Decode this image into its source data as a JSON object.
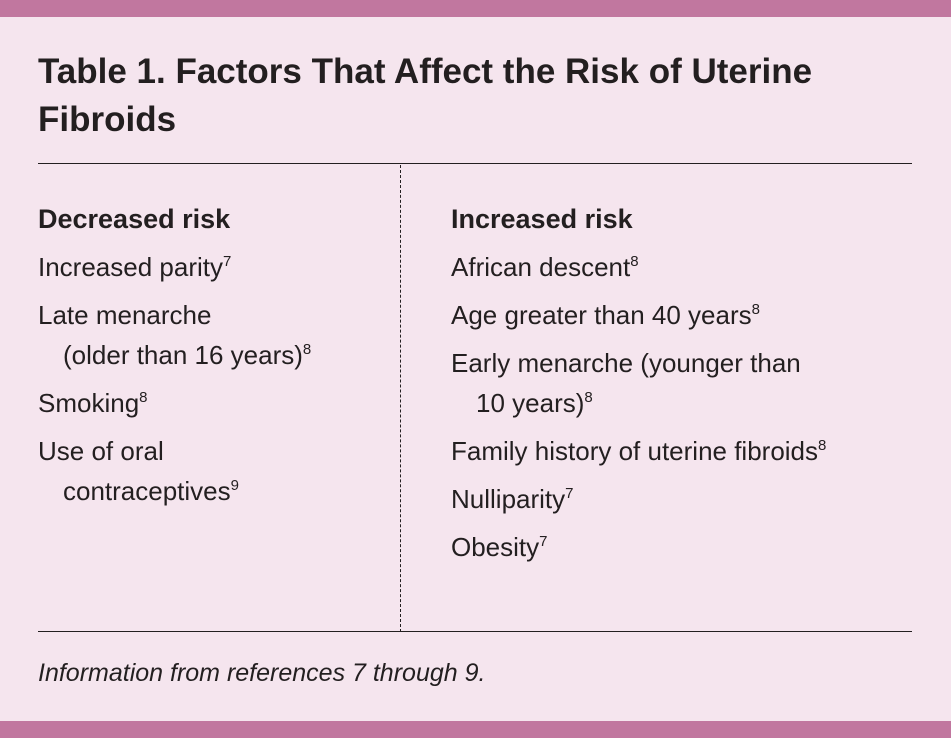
{
  "title": "Table 1. Factors That Affect the Risk of Uterine Fibroids",
  "columns": [
    {
      "heading": "Decreased risk",
      "items": [
        {
          "lines": [
            "Increased parity"
          ],
          "ref": "7"
        },
        {
          "lines": [
            "Late menarche",
            "(older than 16 years)"
          ],
          "ref": "8"
        },
        {
          "lines": [
            "Smoking"
          ],
          "ref": "8"
        },
        {
          "lines": [
            "Use of oral",
            "contraceptives"
          ],
          "ref": "9"
        }
      ]
    },
    {
      "heading": "Increased risk",
      "items": [
        {
          "lines": [
            "African descent"
          ],
          "ref": "8"
        },
        {
          "lines": [
            "Age greater than 40 years"
          ],
          "ref": "8"
        },
        {
          "lines": [
            "Early menarche (younger than",
            "10 years)"
          ],
          "ref": "8"
        },
        {
          "lines": [
            "Family history of uterine fibroids"
          ],
          "ref": "8"
        },
        {
          "lines": [
            "Nulliparity"
          ],
          "ref": "7"
        },
        {
          "lines": [
            "Obesity"
          ],
          "ref": "7"
        }
      ]
    }
  ],
  "footnote": "Information from references 7 through 9."
}
